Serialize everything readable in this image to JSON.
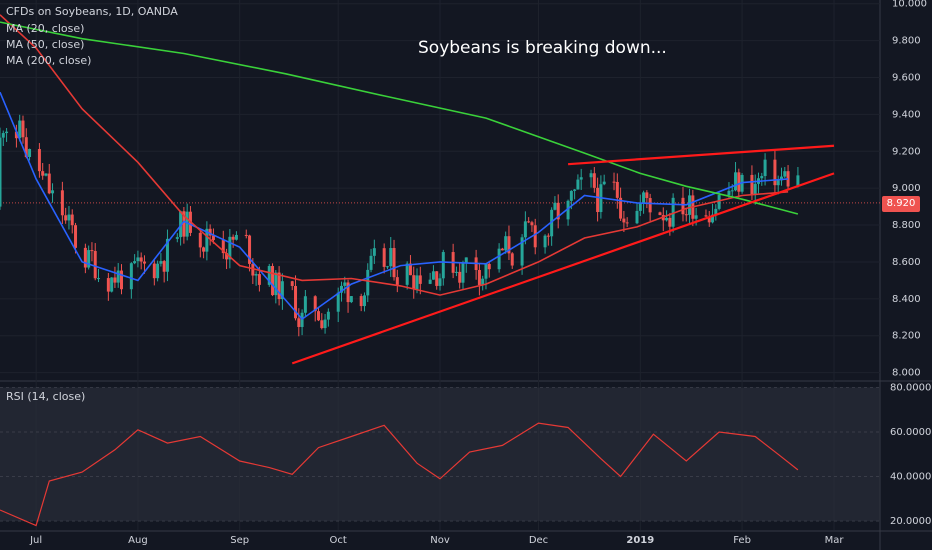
{
  "header": {
    "symbol_line": "CFDs on Soybeans, 1D, OANDA",
    "indicators": [
      "MA (20, close)",
      "MA (50, close)",
      "MA (200, close)"
    ]
  },
  "rsi_pane": {
    "label": "RSI (14, close)"
  },
  "annotation_text": "Soybeans is breaking down...",
  "last_price_label": "8.920",
  "colors": {
    "background": "#131722",
    "up": "#26a69a",
    "down": "#ef5350",
    "ma20": "#2962ff",
    "ma50": "#e53935",
    "ma200": "#3ad13a",
    "trendline": "#ff1a1a",
    "rsi": "#e53935",
    "rsi_band": "#2a2e39"
  },
  "chart_data": [
    {
      "type": "line",
      "title": "CFDs on Soybeans, 1D, OANDA",
      "x_axis_labels": [
        "Jul",
        "Aug",
        "Sep",
        "Oct",
        "Nov",
        "Dec",
        "2019",
        "Feb",
        "Mar"
      ],
      "y_ticks": [
        "8.000",
        "8.200",
        "8.400",
        "8.600",
        "8.800",
        "9.000",
        "9.200",
        "9.400",
        "9.600",
        "9.800",
        "10.000"
      ],
      "ylim": [
        7.96,
        10.02
      ],
      "last_price": 8.92,
      "series": [
        {
          "name": "MA (20, close)",
          "x": [
            "2018-06-20",
            "2018-07-01",
            "2018-07-15",
            "2018-08-01",
            "2018-08-15",
            "2018-09-01",
            "2018-09-20",
            "2018-10-05",
            "2018-10-20",
            "2018-11-01",
            "2018-11-15",
            "2018-12-01",
            "2018-12-15",
            "2018-12-31",
            "2019-01-15",
            "2019-02-01",
            "2019-02-15"
          ],
          "values": [
            9.52,
            9.05,
            8.6,
            8.5,
            8.82,
            8.68,
            8.29,
            8.48,
            8.58,
            8.6,
            8.59,
            8.76,
            8.96,
            8.92,
            8.91,
            9.03,
            9.05
          ]
        },
        {
          "name": "MA (50, close)",
          "x": [
            "2018-06-20",
            "2018-07-01",
            "2018-07-15",
            "2018-08-01",
            "2018-08-15",
            "2018-09-01",
            "2018-09-20",
            "2018-10-05",
            "2018-10-20",
            "2018-11-01",
            "2018-11-15",
            "2018-12-01",
            "2018-12-15",
            "2018-12-31",
            "2019-01-15",
            "2019-02-01",
            "2019-02-15"
          ],
          "values": [
            9.94,
            9.76,
            9.43,
            9.14,
            8.85,
            8.58,
            8.5,
            8.51,
            8.47,
            8.42,
            8.48,
            8.6,
            8.73,
            8.79,
            8.89,
            8.96,
            8.98
          ]
        },
        {
          "name": "MA (200, close)",
          "x": [
            "2018-06-20",
            "2018-07-15",
            "2018-08-15",
            "2018-09-15",
            "2018-10-15",
            "2018-11-15",
            "2018-12-15",
            "2019-01-01",
            "2019-01-15",
            "2019-02-01",
            "2019-02-18"
          ],
          "values": [
            9.9,
            9.81,
            9.73,
            9.62,
            9.5,
            9.38,
            9.19,
            9.08,
            9.01,
            8.94,
            8.86
          ]
        }
      ],
      "trendlines": [
        {
          "x": [
            "2018-09-17",
            "2019-03-01"
          ],
          "values": [
            8.05,
            9.08
          ]
        },
        {
          "x": [
            "2018-12-10",
            "2019-03-01"
          ],
          "values": [
            9.13,
            9.23
          ]
        }
      ]
    },
    {
      "type": "line",
      "title": "RSI (14, close)",
      "y_ticks": [
        "20.0000",
        "40.0000",
        "60.0000",
        "80.0000"
      ],
      "ylim": [
        16,
        82
      ],
      "band": [
        20,
        80
      ],
      "series": [
        {
          "name": "RSI (14, close)",
          "x": [
            "2018-06-20",
            "2018-07-01",
            "2018-07-05",
            "2018-07-15",
            "2018-07-25",
            "2018-08-01",
            "2018-08-10",
            "2018-08-20",
            "2018-09-01",
            "2018-09-10",
            "2018-09-17",
            "2018-09-25",
            "2018-10-05",
            "2018-10-15",
            "2018-10-25",
            "2018-11-01",
            "2018-11-10",
            "2018-11-20",
            "2018-12-01",
            "2018-12-10",
            "2018-12-20",
            "2018-12-26",
            "2019-01-05",
            "2019-01-15",
            "2019-01-25",
            "2019-02-05",
            "2019-02-12",
            "2019-02-18"
          ],
          "values": [
            25,
            18,
            38,
            42,
            52,
            61,
            55,
            58,
            47,
            44,
            41,
            53,
            58,
            63,
            46,
            39,
            51,
            54,
            64,
            62,
            48,
            40,
            59,
            47,
            60,
            58,
            50,
            43
          ]
        }
      ]
    }
  ]
}
